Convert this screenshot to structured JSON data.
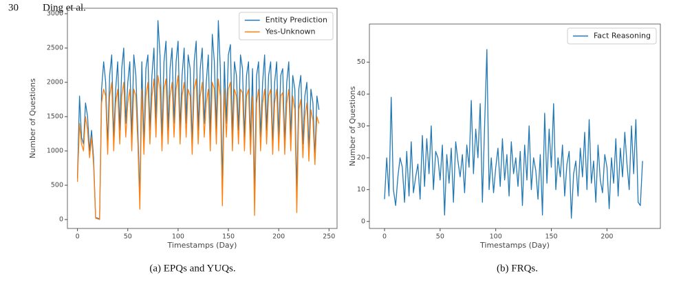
{
  "header": {
    "page_number": "30",
    "authors": "Ding et al."
  },
  "chart_data": [
    {
      "type": "line",
      "xlabel": "Timestamps (Day)",
      "ylabel": "Number of Questions",
      "caption": "(a) EPQs and YUQs.",
      "legend": "upper right",
      "xlim": [
        -10,
        258
      ],
      "ylim": [
        -130,
        3080
      ],
      "xticks": [
        0,
        50,
        100,
        150,
        200,
        250
      ],
      "yticks": [
        0,
        500,
        1000,
        1500,
        2000,
        2500,
        3000
      ],
      "x": [
        0,
        2,
        4,
        6,
        8,
        10,
        12,
        14,
        16,
        18,
        20,
        22,
        24,
        26,
        28,
        30,
        32,
        34,
        36,
        38,
        40,
        42,
        44,
        46,
        48,
        50,
        52,
        54,
        56,
        58,
        60,
        62,
        64,
        66,
        68,
        70,
        72,
        74,
        76,
        78,
        80,
        82,
        84,
        86,
        88,
        90,
        92,
        94,
        96,
        98,
        100,
        102,
        104,
        106,
        108,
        110,
        112,
        114,
        116,
        118,
        120,
        122,
        124,
        126,
        128,
        130,
        132,
        134,
        136,
        138,
        140,
        142,
        144,
        146,
        148,
        150,
        152,
        154,
        156,
        158,
        160,
        162,
        164,
        166,
        168,
        170,
        172,
        174,
        176,
        178,
        180,
        182,
        184,
        186,
        188,
        190,
        192,
        194,
        196,
        198,
        200,
        202,
        204,
        206,
        208,
        210,
        212,
        214,
        216,
        218,
        220,
        222,
        224,
        226,
        228,
        230,
        232,
        234,
        236,
        238,
        240
      ],
      "series": [
        {
          "name": "Entity Prediction",
          "color": "#1f77b4",
          "values": [
            600,
            1800,
            1200,
            1100,
            1700,
            1500,
            1000,
            1300,
            900,
            30,
            20,
            10,
            1900,
            2300,
            2000,
            1100,
            2100,
            2400,
            1200,
            1900,
            2300,
            1300,
            2200,
            2500,
            1400,
            2000,
            2300,
            1200,
            2400,
            2100,
            1300,
            300,
            2300,
            1100,
            2200,
            2400,
            1300,
            2100,
            2500,
            1400,
            2900,
            2400,
            1200,
            2300,
            2600,
            1300,
            2200,
            2500,
            1400,
            2300,
            2600,
            1300,
            2100,
            2500,
            1400,
            2400,
            2200,
            1100,
            2300,
            2600,
            1300,
            2200,
            2500,
            1400,
            2000,
            2400,
            1200,
            2700,
            2300,
            1300,
            2900,
            2200,
            500,
            2300,
            1400,
            2400,
            2550,
            1200,
            2300,
            2100,
            1300,
            2400,
            2200,
            1200,
            2100,
            2300,
            1100,
            2200,
            300,
            2100,
            2300,
            1200,
            2000,
            2400,
            1300,
            2100,
            2300,
            1100,
            2000,
            2300,
            1200,
            2100,
            2200,
            1100,
            2000,
            2300,
            1200,
            2100,
            1900,
            400,
            1900,
            2100,
            1100,
            1800,
            2000,
            1000,
            1900,
            1700,
            900,
            1800,
            1600
          ]
        },
        {
          "name": "Yes-Unknown",
          "color": "#ff7f0e",
          "values": [
            550,
            1400,
            1100,
            1000,
            1500,
            1300,
            900,
            1200,
            800,
            20,
            10,
            0,
            1700,
            1900,
            1800,
            950,
            1800,
            2000,
            1000,
            1700,
            1900,
            1100,
            1800,
            2000,
            1200,
            1700,
            1900,
            1000,
            1900,
            1800,
            1100,
            150,
            1900,
            950,
            1800,
            2000,
            1100,
            1800,
            2050,
            1200,
            2100,
            1900,
            1000,
            1900,
            2050,
            1100,
            1800,
            2000,
            1200,
            1900,
            2100,
            1100,
            1800,
            2000,
            1200,
            1900,
            1800,
            950,
            1900,
            2050,
            1100,
            1800,
            2000,
            1200,
            1700,
            1900,
            1000,
            2000,
            1900,
            1100,
            2050,
            1800,
            200,
            1900,
            1200,
            1900,
            2000,
            1000,
            1900,
            1800,
            1100,
            1900,
            1850,
            1000,
            1800,
            1900,
            950,
            1800,
            60,
            1700,
            1900,
            1000,
            1700,
            1900,
            1100,
            1800,
            1900,
            950,
            1700,
            1900,
            1000,
            1800,
            1850,
            950,
            1700,
            1900,
            1000,
            1800,
            1600,
            100,
            1600,
            1750,
            900,
            1500,
            1700,
            850,
            1600,
            1450,
            800,
            1500,
            1400
          ]
        }
      ]
    },
    {
      "type": "line",
      "xlabel": "Timestamps (Day)",
      "ylabel": "Number of Questions",
      "caption": "(b) FRQs.",
      "legend": "upper right",
      "xlim": [
        -13.6,
        248
      ],
      "ylim": [
        -2.2,
        62
      ],
      "xticks": [
        0,
        50,
        100,
        150,
        200
      ],
      "yticks": [
        0,
        10,
        20,
        30,
        40,
        50
      ],
      "x": [
        0,
        2,
        4,
        6,
        8,
        10,
        12,
        14,
        16,
        18,
        20,
        22,
        24,
        26,
        28,
        30,
        32,
        34,
        36,
        38,
        40,
        42,
        44,
        46,
        48,
        50,
        52,
        54,
        56,
        58,
        60,
        62,
        64,
        66,
        68,
        70,
        72,
        74,
        76,
        78,
        80,
        82,
        84,
        86,
        88,
        90,
        92,
        94,
        96,
        98,
        100,
        102,
        104,
        106,
        108,
        110,
        112,
        114,
        116,
        118,
        120,
        122,
        124,
        126,
        128,
        130,
        132,
        134,
        136,
        138,
        140,
        142,
        144,
        146,
        148,
        150,
        152,
        154,
        156,
        158,
        160,
        162,
        164,
        166,
        168,
        170,
        172,
        174,
        176,
        178,
        180,
        182,
        184,
        186,
        188,
        190,
        192,
        194,
        196,
        198,
        200,
        202,
        204,
        206,
        208,
        210,
        212,
        214,
        216,
        218,
        220,
        222,
        224,
        226,
        228,
        230,
        232
      ],
      "series": [
        {
          "name": "Fact Reasoning",
          "color": "#1f77b4",
          "values": [
            7,
            20,
            8,
            39,
            10,
            5,
            14,
            20,
            17,
            6,
            22,
            8,
            25,
            9,
            14,
            18,
            7,
            27,
            11,
            26,
            15,
            30,
            10,
            22,
            20,
            13,
            24,
            2,
            21,
            12,
            23,
            6,
            25,
            19,
            14,
            21,
            9,
            24,
            17,
            38,
            15,
            29,
            20,
            37,
            6,
            30,
            54,
            10,
            20,
            9,
            17,
            23,
            11,
            26,
            13,
            21,
            8,
            25,
            15,
            20,
            11,
            22,
            5,
            24,
            13,
            30,
            10,
            20,
            16,
            7,
            21,
            2,
            34,
            12,
            29,
            17,
            37,
            10,
            20,
            14,
            24,
            8,
            18,
            22,
            1,
            15,
            19,
            8,
            23,
            14,
            28,
            10,
            32,
            12,
            19,
            6,
            24,
            13,
            9,
            21,
            17,
            4,
            20,
            12,
            26,
            8,
            23,
            14,
            28,
            18,
            10,
            30,
            15,
            32,
            6,
            5,
            19
          ]
        }
      ]
    }
  ]
}
